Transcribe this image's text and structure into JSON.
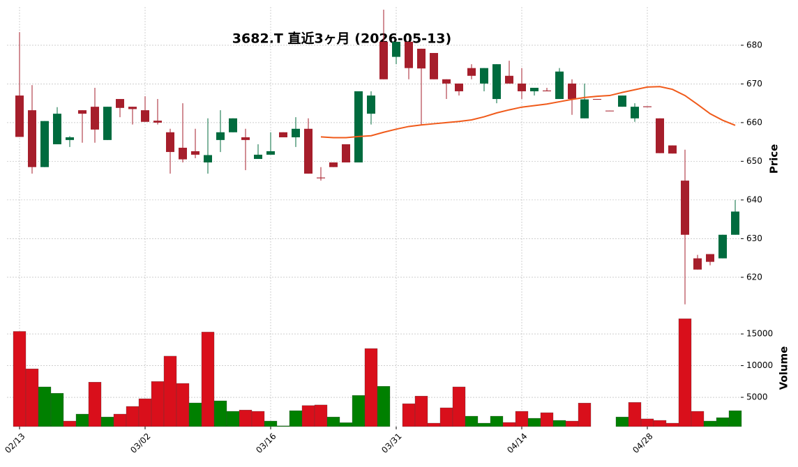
{
  "chart_data": {
    "type": "candlestick",
    "title": "3682.T  直近3ヶ月  (2026-05-13)",
    "categories": [
      "02/13",
      null,
      null,
      null,
      null,
      null,
      null,
      null,
      null,
      null,
      "03/02",
      null,
      null,
      null,
      null,
      null,
      null,
      null,
      null,
      null,
      "03/16",
      null,
      null,
      null,
      null,
      null,
      null,
      null,
      null,
      null,
      "03/31",
      null,
      null,
      null,
      null,
      null,
      null,
      null,
      null,
      null,
      "04/14",
      null,
      null,
      null,
      null,
      null,
      null,
      null,
      null,
      null,
      "04/28",
      null,
      null,
      null,
      null,
      null,
      null,
      null
    ],
    "open": [
      667,
      663.2,
      648.5,
      654.4,
      655.5,
      663.2,
      664.1,
      655.5,
      666.1,
      664.1,
      663.2,
      660.5,
      657.5,
      653.5,
      652.6,
      649.7,
      655.5,
      657.5,
      656.2,
      650.6,
      651.7,
      657.5,
      656.2,
      658.4,
      645.8,
      649.7,
      654.4,
      649.7,
      662.3,
      680.9,
      677,
      680.9,
      679.1,
      678,
      671.2,
      670.1,
      674.1,
      670.1,
      666.1,
      672.1,
      670.1,
      668.1,
      668.3,
      666.1,
      670.1,
      661.1,
      666.1,
      663.1,
      664.1,
      661.1,
      664.2,
      661.1,
      654.1,
      645,
      624.9,
      626,
      624.9,
      631
    ],
    "high": [
      683.4,
      669.7,
      660.4,
      664,
      656.5,
      663.2,
      669,
      664.1,
      666.1,
      664.1,
      666.8,
      666.1,
      658.4,
      665,
      658.4,
      661.1,
      663.2,
      661.1,
      658.4,
      654.4,
      657.5,
      657.5,
      661.4,
      661.1,
      648.5,
      649.7,
      654.4,
      668.1,
      668.1,
      689.2,
      680.9,
      680.9,
      679.1,
      678,
      671.2,
      670.1,
      675.1,
      674.1,
      675.1,
      676,
      674.1,
      669,
      669,
      674.1,
      671.2,
      670.1,
      666.1,
      663.1,
      667,
      665,
      664.2,
      661.1,
      654.1,
      653,
      625.8,
      626,
      631,
      640
    ],
    "low": [
      656.3,
      646.8,
      648.5,
      654.4,
      653.7,
      654.8,
      654.8,
      655.5,
      661.4,
      659.5,
      660.2,
      659.5,
      646.8,
      649.7,
      650.8,
      646.8,
      652.4,
      657.5,
      647.7,
      650.6,
      651.7,
      656.2,
      653.7,
      646.8,
      645,
      648.5,
      649.7,
      649.7,
      659.5,
      671.2,
      675.1,
      671.2,
      659.5,
      671.2,
      666.1,
      667,
      671.2,
      668.1,
      665,
      670.1,
      666.1,
      667,
      668.1,
      666.1,
      662,
      661.1,
      666,
      663,
      664.1,
      660.2,
      664,
      652.1,
      652,
      613,
      622,
      623.1,
      624.9,
      631
    ],
    "close": [
      656.3,
      648.5,
      660.4,
      662.3,
      656.2,
      662.3,
      658.2,
      664.1,
      663.8,
      663.5,
      660.2,
      660,
      652.4,
      650.5,
      651.7,
      651.6,
      657.5,
      661.1,
      655.5,
      651.7,
      652.6,
      656.2,
      658.4,
      646.8,
      645.6,
      648.5,
      649.7,
      668.1,
      667,
      671.2,
      680.9,
      674.1,
      674,
      671.2,
      670.1,
      668.1,
      672.1,
      674.1,
      675.1,
      670.1,
      668.1,
      669,
      668.1,
      673.2,
      666.1,
      666,
      666,
      663,
      667,
      664.1,
      664,
      652.1,
      652,
      631,
      622,
      624,
      631,
      637
    ],
    "volume": [
      15400,
      9500,
      6650,
      5650,
      1260,
      2360,
      7400,
      1900,
      2360,
      3570,
      4780,
      7500,
      11500,
      7200,
      4120,
      15300,
      4450,
      2800,
      3000,
      2800,
      1260,
      500,
      2900,
      3700,
      3800,
      1900,
      1000,
      5300,
      12700,
      6750,
      270,
      4000,
      5200,
      930,
      3350,
      6650,
      2030,
      930,
      2030,
      1040,
      2800,
      1700,
      2580,
      1370,
      1260,
      4100,
      null,
      null,
      1900,
      4200,
      1600,
      1370,
      930,
      17400,
      2800,
      1260,
      1800,
      2900
    ],
    "ma": [
      null,
      null,
      null,
      null,
      null,
      null,
      null,
      null,
      null,
      null,
      null,
      null,
      null,
      null,
      null,
      null,
      null,
      null,
      null,
      null,
      null,
      null,
      null,
      null,
      656.3,
      656.1,
      656.1,
      656.4,
      656.6,
      657.5,
      658.3,
      659,
      659.4,
      659.7,
      660,
      660.3,
      660.7,
      661.5,
      662.5,
      663.3,
      664,
      664.4,
      664.8,
      665.4,
      666,
      666.5,
      666.8,
      667,
      667.8,
      668.5,
      669.2,
      669.3,
      668.6,
      667,
      664.7,
      662.3,
      660.6,
      659.3
    ],
    "up_color": "#006b3e",
    "down_color": "#a61e2b",
    "volume_up_color": "#008000",
    "volume_down_color": "#d90f1b",
    "ma_color": "#f05a1a",
    "ylabel": "Price",
    "ylim": [
      612.4,
      689.9
    ],
    "yticks": [
      620,
      630,
      640,
      650,
      660,
      670,
      680
    ],
    "volume_label": "Volume",
    "volume_ylim": [
      385,
      19300
    ],
    "volume_yticks": [
      5000,
      10000,
      15000
    ],
    "grid": true
  }
}
